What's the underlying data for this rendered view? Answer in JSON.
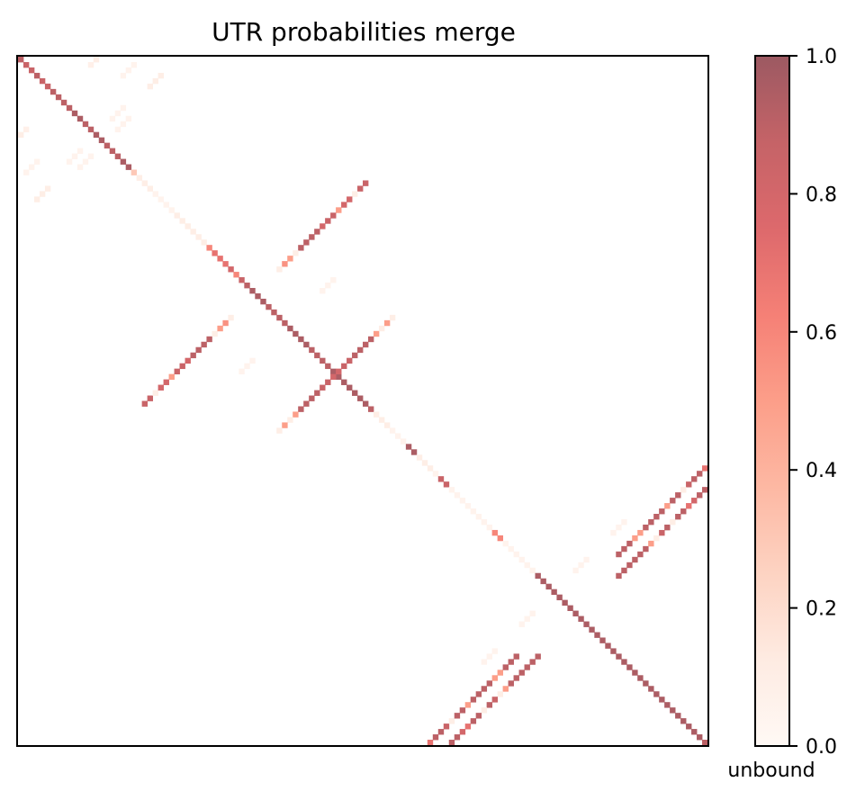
{
  "chart_data": {
    "type": "heatmap",
    "title": "UTR probabilities merge",
    "xlabel": "",
    "ylabel": "",
    "n": 128,
    "axis_ticks": "none",
    "colorbar": {
      "label": "unbound",
      "range": [
        0.0,
        1.0
      ],
      "ticks": [
        0.0,
        0.2,
        0.4,
        0.6,
        0.8,
        1.0
      ],
      "tick_labels": [
        "0.0",
        "0.2",
        "0.4",
        "0.6",
        "0.8",
        "1.0"
      ],
      "placement": "right"
    },
    "colormap": {
      "name": "Reds",
      "alpha": 0.65,
      "stops": [
        "#fff5f0",
        "#fee0d2",
        "#fcbba1",
        "#fc9272",
        "#fb6a4a",
        "#ef3b2c",
        "#cb181d",
        "#a50f15",
        "#67000d"
      ]
    },
    "diagonal": [
      {
        "from": 0,
        "to": 127,
        "values": [
          0.9,
          0.85,
          0.85,
          0.9,
          0.85,
          0.85,
          0.9,
          0.9,
          0.9,
          0.9,
          0.95,
          0.95,
          0.9,
          0.9,
          0.95,
          0.95,
          0.9,
          0.9,
          0.9,
          0.95,
          0.95,
          0.3,
          0.1,
          0.1,
          0.1,
          0.05,
          0.05,
          0.05,
          0.05,
          0.1,
          0.1,
          0.1,
          0.1,
          0.1,
          0.1,
          0.6,
          0.7,
          0.7,
          0.7,
          0.8,
          0.6,
          0.85,
          0.9,
          0.95,
          0.95,
          0.95,
          0.9,
          0.9,
          0.9,
          0.9,
          0.95,
          0.95,
          0.95,
          0.95,
          0.9,
          0.9,
          0.9,
          0.9,
          0.95,
          0.95,
          0.95,
          0.95,
          0.95,
          0.95,
          0.95,
          0.9,
          0.1,
          0.1,
          0.1,
          0.05,
          0.05,
          0.05,
          0.95,
          0.95,
          0.1,
          0.1,
          0.1,
          0.05,
          0.85,
          0.85,
          0.05,
          0.05,
          0.05,
          0.05,
          0.05,
          0.05,
          0.05,
          0.05,
          0.6,
          0.6,
          0.05,
          0.05,
          0.05,
          0.05,
          0.05,
          0.05,
          0.95,
          0.95,
          0.95,
          0.95,
          0.95,
          0.95,
          0.95,
          0.95,
          0.95,
          0.95,
          0.95,
          0.95,
          0.95,
          0.95,
          0.95,
          0.95,
          0.95,
          0.95,
          0.95,
          0.95,
          0.95,
          0.95,
          0.95,
          0.95,
          0.95,
          0.95,
          0.95,
          0.95,
          0.95,
          0.95,
          0.95,
          0.9
        ]
      }
    ],
    "stems": [
      {
        "i_start": 3,
        "j_start": 26,
        "length": 3,
        "values": [
          0.1,
          0.1,
          0.1
        ]
      },
      {
        "i_start": 11,
        "j_start": 20,
        "length": 3,
        "values": [
          0.05,
          0.05,
          0.05
        ]
      },
      {
        "i_start": 13,
        "j_start": 1,
        "length": 4,
        "values": [
          0.08,
          0.1,
          0.1,
          0.08
        ]
      },
      {
        "i_start": 17,
        "j_start": 11,
        "length": 3,
        "values": [
          0.05,
          0.05,
          0.05
        ]
      },
      {
        "i_start": 19,
        "j_start": 3,
        "length": 3,
        "values": [
          0.05,
          0.05,
          0.05
        ]
      },
      {
        "i_start": 23,
        "j_start": 64,
        "length": 17,
        "values": [
          0.85,
          0.85,
          0.1,
          0.8,
          0.8,
          0.5,
          0.85,
          0.85,
          0.8,
          0.9,
          0.9,
          0.9,
          0.9,
          0.1,
          0.5,
          0.55,
          0.1
        ]
      },
      {
        "i_start": 41,
        "j_start": 58,
        "length": 3,
        "values": [
          0.05,
          0.05,
          0.05
        ]
      },
      {
        "i_start": 53,
        "j_start": 64,
        "length": 6,
        "values": [
          0.05,
          0.05,
          0.05,
          0.05,
          0.05,
          0.05
        ]
      },
      {
        "i_start": 53,
        "j_start": 64,
        "length": 17,
        "values": [
          0.85,
          0.85,
          0.5,
          0.1,
          0.8,
          0.8,
          0.5,
          0.85,
          0.85,
          0.9,
          0.9,
          0.9,
          0.9,
          0.5,
          0.1,
          0.5,
          0.1
        ]
      },
      {
        "i_start": 76,
        "j_start": 127,
        "length": 17,
        "values": [
          0.7,
          0.9,
          0.9,
          0.85,
          0.1,
          0.9,
          0.9,
          0.5,
          0.9,
          0.9,
          0.9,
          0.9,
          0.5,
          0.5,
          0.9,
          0.9,
          0.9
        ]
      },
      {
        "i_start": 103,
        "j_start": 95,
        "length": 3,
        "values": [
          0.05,
          0.05,
          0.05
        ]
      },
      {
        "i_start": 110,
        "j_start": 88,
        "length": 3,
        "values": [
          0.05,
          0.05,
          0.05
        ]
      },
      {
        "i_start": 103,
        "j_start": 103,
        "length": 0,
        "values": []
      },
      {
        "i_start": 111,
        "j_start": 96,
        "length": 17,
        "values": [
          0.9,
          0.9,
          0.9,
          0.9,
          0.9,
          0.9,
          0.5,
          0.1,
          0.85,
          0.9,
          0.1,
          0.9,
          0.9,
          0.7,
          0.8,
          0.9,
          0.9
        ]
      }
    ]
  }
}
